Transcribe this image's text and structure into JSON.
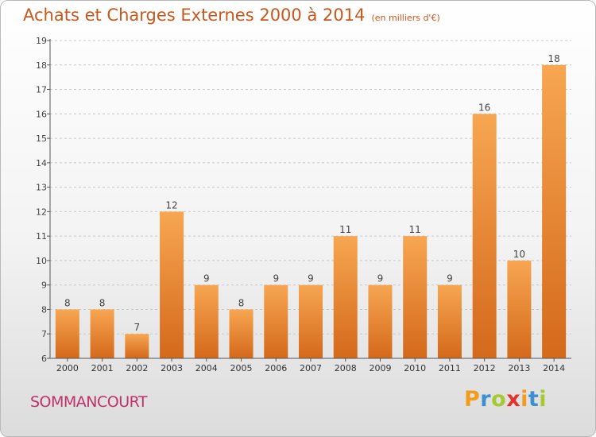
{
  "header": {
    "title": "Achats et Charges Externes 2000 à 2014",
    "subtitle": "(en milliers d'€)"
  },
  "footer": {
    "commune": "SOMMANCOURT",
    "logo_letters": [
      "P",
      "r",
      "o",
      "x",
      "i",
      "t",
      "i"
    ],
    "logo_colors": [
      "#f39b1e",
      "#3e8fd1",
      "#a6c92f",
      "#e4322b",
      "#f39b1e",
      "#3e8fd1",
      "#a6c92f"
    ]
  },
  "chart_data": {
    "type": "bar",
    "categories": [
      "2000",
      "2001",
      "2002",
      "2003",
      "2004",
      "2005",
      "2006",
      "2007",
      "2008",
      "2009",
      "2010",
      "2011",
      "2012",
      "2013",
      "2014"
    ],
    "values": [
      8,
      8,
      7,
      12,
      9,
      8,
      9,
      9,
      11,
      9,
      11,
      9,
      16,
      10,
      18
    ],
    "ylim": [
      6,
      19
    ],
    "yticks": [
      6,
      7,
      8,
      9,
      10,
      11,
      12,
      13,
      14,
      15,
      16,
      17,
      18,
      19
    ],
    "grid": "horizontal-dashed",
    "colors": {
      "bar_top": "#f7a652",
      "bar_bottom": "#d4691a",
      "axis": "#555555"
    }
  }
}
